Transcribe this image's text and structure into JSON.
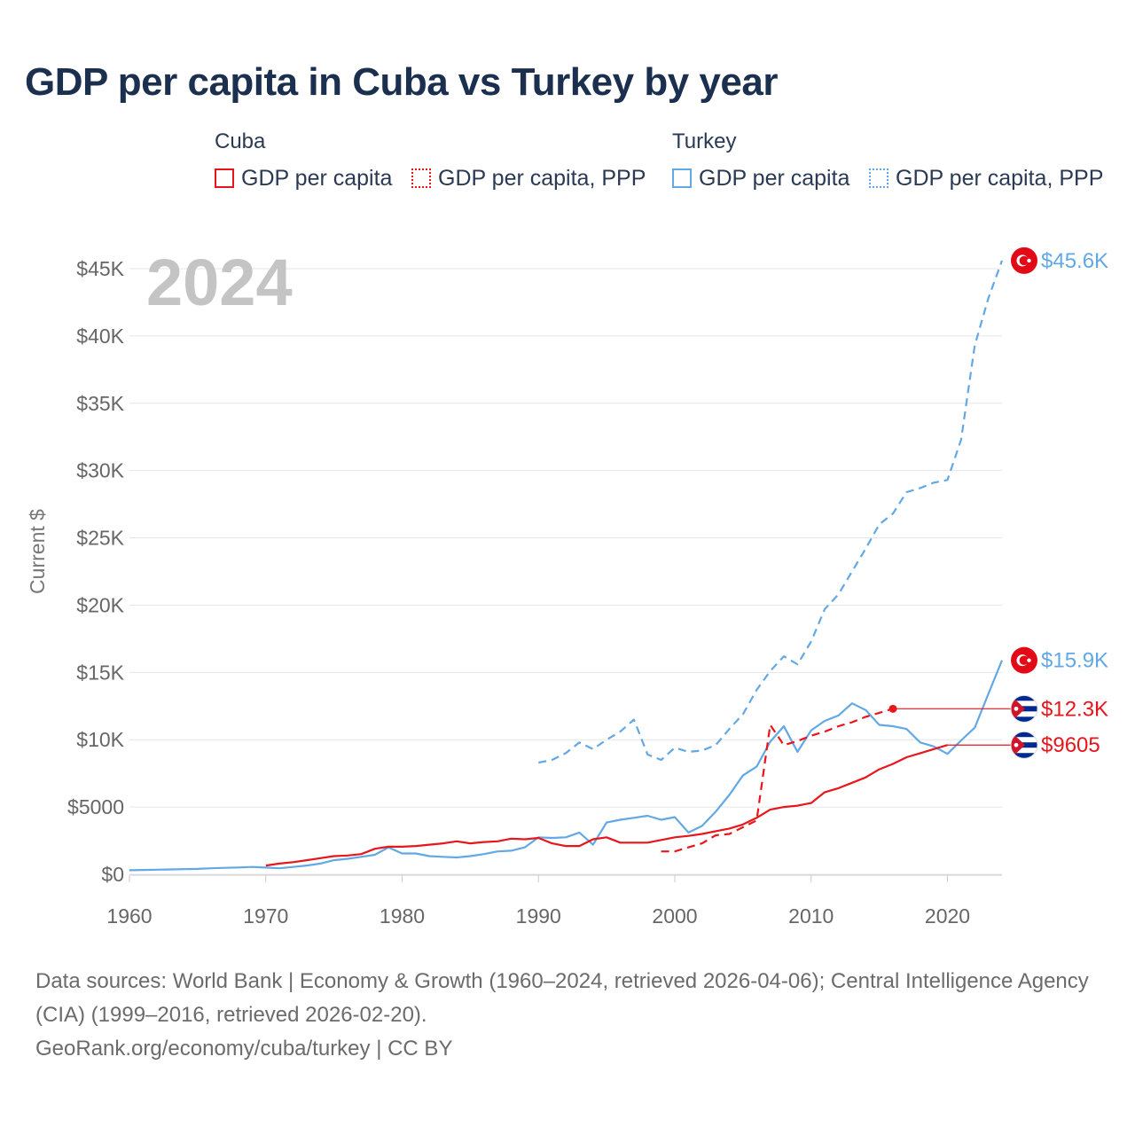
{
  "title": "GDP per capita in Cuba vs Turkey by year",
  "legend": {
    "cuba": {
      "group": "Cuba",
      "items": [
        {
          "label": "GDP per capita",
          "style": "solid",
          "color": "#e8151b"
        },
        {
          "label": "GDP per capita, PPP",
          "style": "dotted",
          "color": "#e8151b"
        }
      ]
    },
    "turkey": {
      "group": "Turkey",
      "items": [
        {
          "label": "GDP per capita",
          "style": "solid",
          "color": "#62a8e5"
        },
        {
          "label": "GDP per capita, PPP",
          "style": "dotted",
          "color": "#62a8e5"
        }
      ]
    }
  },
  "footer": {
    "sources": "Data sources: World Bank | Economy & Growth (1960–2024, retrieved 2026-04-06); Central Intelligence Agency (CIA) (1999–2016, retrieved 2026-02-20).",
    "credit": "GeoRank.org/economy/cuba/turkey | CC BY"
  },
  "chart_data": {
    "type": "line",
    "title": "GDP per capita in Cuba vs Turkey by year",
    "year_label": "2024",
    "xlabel": "",
    "ylabel": "Current $",
    "xlim": [
      1960,
      2024
    ],
    "ylim": [
      0,
      45000
    ],
    "x_ticks": [
      1960,
      1970,
      1980,
      1990,
      2000,
      2010,
      2020
    ],
    "y_ticks": [
      {
        "value": 0,
        "label": "$0"
      },
      {
        "value": 5000,
        "label": "$5000"
      },
      {
        "value": 10000,
        "label": "$10K"
      },
      {
        "value": 15000,
        "label": "$15K"
      },
      {
        "value": 20000,
        "label": "$20K"
      },
      {
        "value": 25000,
        "label": "$25K"
      },
      {
        "value": 30000,
        "label": "$30K"
      },
      {
        "value": 35000,
        "label": "$35K"
      },
      {
        "value": 40000,
        "label": "$40K"
      },
      {
        "value": 45000,
        "label": "$45K"
      }
    ],
    "grid": true,
    "series": [
      {
        "name": "Turkey GDP per capita, PPP",
        "country": "Turkey",
        "color": "#62a8e5",
        "dash": "dashed",
        "end_label": "$45.6K",
        "x": [
          1990,
          1991,
          1992,
          1993,
          1994,
          1995,
          1996,
          1997,
          1998,
          1999,
          2000,
          2001,
          2002,
          2003,
          2004,
          2005,
          2006,
          2007,
          2008,
          2009,
          2010,
          2011,
          2012,
          2013,
          2014,
          2015,
          2016,
          2017,
          2018,
          2019,
          2020,
          2021,
          2022,
          2023,
          2024
        ],
        "values": [
          8300,
          8500,
          9000,
          9800,
          9300,
          10000,
          10600,
          11500,
          8900,
          8500,
          9400,
          9100,
          9200,
          9600,
          10800,
          11900,
          13700,
          15100,
          16200,
          15600,
          17300,
          19700,
          20800,
          22500,
          24200,
          26000,
          26800,
          28400,
          28700,
          29100,
          29300,
          32300,
          39300,
          42800,
          45600
        ]
      },
      {
        "name": "Turkey GDP per capita",
        "country": "Turkey",
        "color": "#62a8e5",
        "dash": "solid",
        "end_label": "$15.9K",
        "x": [
          1960,
          1961,
          1962,
          1963,
          1964,
          1965,
          1966,
          1967,
          1968,
          1969,
          1970,
          1971,
          1972,
          1973,
          1974,
          1975,
          1976,
          1977,
          1978,
          1979,
          1980,
          1981,
          1982,
          1983,
          1984,
          1985,
          1986,
          1987,
          1988,
          1989,
          1990,
          1991,
          1992,
          1993,
          1994,
          1995,
          1996,
          1997,
          1998,
          1999,
          2000,
          2001,
          2002,
          2003,
          2004,
          2005,
          2006,
          2007,
          2008,
          2009,
          2010,
          2011,
          2012,
          2013,
          2014,
          2015,
          2016,
          2017,
          2018,
          2019,
          2020,
          2021,
          2022,
          2023,
          2024
        ],
        "values": [
          300,
          320,
          340,
          360,
          380,
          400,
          450,
          480,
          510,
          550,
          500,
          450,
          550,
          650,
          800,
          1050,
          1150,
          1300,
          1450,
          2000,
          1550,
          1550,
          1350,
          1300,
          1250,
          1350,
          1500,
          1700,
          1750,
          2000,
          2750,
          2700,
          2750,
          3100,
          2200,
          3850,
          4050,
          4200,
          4350,
          4050,
          4250,
          3100,
          3600,
          4650,
          5900,
          7350,
          8000,
          9850,
          11000,
          9100,
          10700,
          11400,
          11800,
          12700,
          12200,
          11100,
          11000,
          10800,
          9800,
          9500,
          8950,
          9950,
          10900,
          13400,
          15900
        ]
      },
      {
        "name": "Cuba GDP per capita, PPP",
        "country": "Cuba",
        "color": "#e8151b",
        "dash": "dashed",
        "end_label": "$12.3K",
        "x": [
          1999,
          2000,
          2001,
          2002,
          2003,
          2004,
          2005,
          2006,
          2007,
          2008,
          2009,
          2010,
          2011,
          2012,
          2013,
          2014,
          2015,
          2016
        ],
        "values": [
          1700,
          1700,
          2000,
          2300,
          2900,
          3000,
          3500,
          4000,
          11100,
          9600,
          9900,
          10300,
          10600,
          11000,
          11300,
          11700,
          12000,
          12300
        ]
      },
      {
        "name": "Cuba GDP per capita",
        "country": "Cuba",
        "color": "#e8151b",
        "dash": "solid",
        "end_label": "$9605",
        "x": [
          1970,
          1971,
          1972,
          1973,
          1974,
          1975,
          1976,
          1977,
          1978,
          1979,
          1980,
          1981,
          1982,
          1983,
          1984,
          1985,
          1986,
          1987,
          1988,
          1989,
          1990,
          1991,
          1992,
          1993,
          1994,
          1995,
          1996,
          1997,
          1998,
          1999,
          2000,
          2001,
          2002,
          2003,
          2004,
          2005,
          2006,
          2007,
          2008,
          2009,
          2010,
          2011,
          2012,
          2013,
          2014,
          2015,
          2016,
          2017,
          2018,
          2019,
          2020
        ],
        "values": [
          650,
          800,
          900,
          1050,
          1200,
          1350,
          1400,
          1500,
          1900,
          2050,
          2050,
          2100,
          2200,
          2300,
          2450,
          2300,
          2400,
          2450,
          2650,
          2600,
          2700,
          2300,
          2100,
          2100,
          2600,
          2750,
          2350,
          2350,
          2350,
          2550,
          2750,
          2850,
          3000,
          3200,
          3400,
          3700,
          4200,
          4800,
          5000,
          5100,
          5300,
          6100,
          6400,
          6800,
          7200,
          7800,
          8200,
          8700,
          9000,
          9300,
          9605
        ]
      }
    ]
  }
}
